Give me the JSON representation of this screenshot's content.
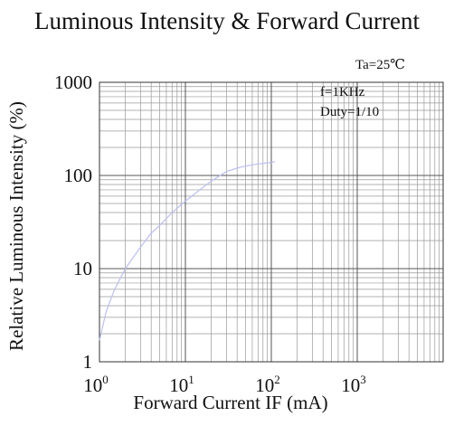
{
  "chart_data": {
    "type": "line",
    "title": "Luminous Intensity & Forward Current",
    "xlabel": "Forward Current IF (mA)",
    "ylabel": "Relative Luminous Intensity (%)",
    "x_scale": "log",
    "y_scale": "log",
    "xlim": [
      1,
      10000
    ],
    "ylim": [
      1,
      1000
    ],
    "x_ticks": [
      {
        "base": "10",
        "exp": "0"
      },
      {
        "base": "10",
        "exp": "1"
      },
      {
        "base": "10",
        "exp": "2"
      },
      {
        "base": "10",
        "exp": "3"
      }
    ],
    "y_ticks": [
      "1",
      "10",
      "100",
      "1000"
    ],
    "grid": true,
    "annotations": {
      "ta": "Ta=25℃",
      "freq": "f=1KHz",
      "duty": "Duty=1/10"
    },
    "series": [
      {
        "color": "#b9bff0",
        "x": [
          1.0,
          1.2,
          1.5,
          2,
          3,
          4,
          5,
          7,
          10,
          15,
          20,
          30,
          40,
          50,
          70,
          100,
          110
        ],
        "y": [
          1.7,
          3.5,
          6,
          10,
          17,
          24,
          29,
          40,
          53,
          71,
          87,
          110,
          120,
          126,
          133,
          138,
          141
        ]
      }
    ]
  }
}
